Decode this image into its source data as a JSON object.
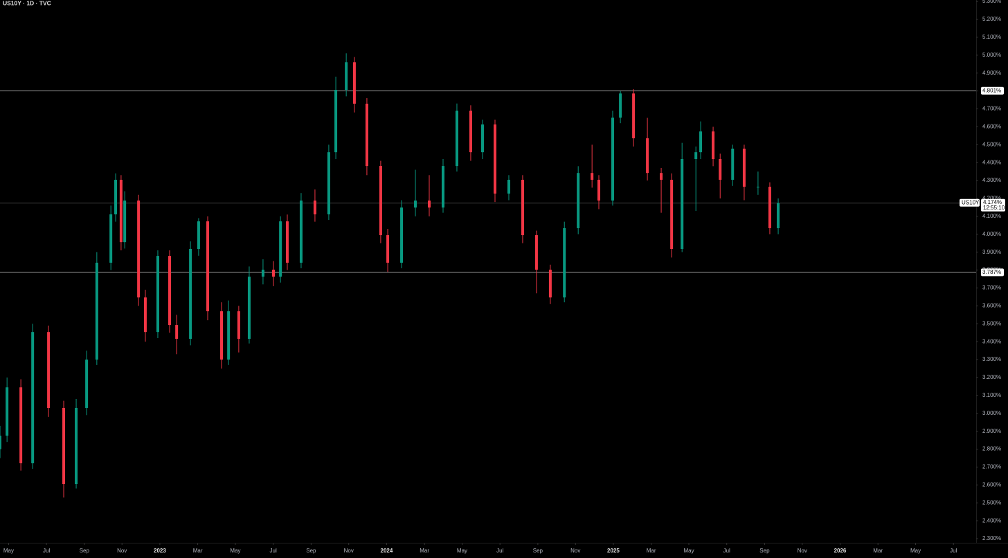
{
  "chart_data": {
    "type": "candlestick",
    "title": "US10Y · 1D · TVC",
    "up_color": "#089981",
    "down_color": "#f23645",
    "x": [
      2022.295,
      2022.326,
      2022.387,
      2022.439,
      2022.509,
      2022.576,
      2022.631,
      2022.677,
      2022.722,
      2022.784,
      2022.805,
      2022.829,
      2022.845,
      2022.906,
      2022.936,
      2022.991,
      2023.043,
      2023.074,
      2023.135,
      2023.171,
      2023.211,
      2023.272,
      2023.303,
      2023.348,
      2023.394,
      2023.455,
      2023.501,
      2023.532,
      2023.562,
      2023.623,
      2023.684,
      2023.745,
      2023.776,
      2023.822,
      2023.858,
      2023.913,
      2023.974,
      2024.005,
      2024.066,
      2024.127,
      2024.188,
      2024.249,
      2024.31,
      2024.371,
      2024.423,
      2024.478,
      2024.539,
      2024.6,
      2024.661,
      2024.722,
      2024.784,
      2024.845,
      2024.906,
      2024.936,
      2024.997,
      2025.031,
      2025.089,
      2025.15,
      2025.211,
      2025.257,
      2025.303,
      2025.364,
      2025.385,
      2025.44,
      2025.471,
      2025.526,
      2025.577,
      2025.638,
      2025.69,
      2025.727
    ],
    "open": [
      2.8,
      2.875,
      3.145,
      2.721,
      3.454,
      3.03,
      2.605,
      3.03,
      3.3,
      3.841,
      4.111,
      4.304,
      3.956,
      4.188,
      3.647,
      3.454,
      3.879,
      3.493,
      3.416,
      3.918,
      4.072,
      3.57,
      3.3,
      3.57,
      3.416,
      3.763,
      3.802,
      3.763,
      4.072,
      3.841,
      4.188,
      4.111,
      4.458,
      4.806,
      4.96,
      4.729,
      4.381,
      3.995,
      3.841,
      4.149,
      4.188,
      4.149,
      4.381,
      4.69,
      4.458,
      4.613,
      4.227,
      4.304,
      3.995,
      3.802,
      3.647,
      4.034,
      4.342,
      4.304,
      4.188,
      4.651,
      4.786,
      4.536,
      4.342,
      4.304,
      3.918,
      4.42,
      4.458,
      4.574,
      4.42,
      4.304,
      4.478,
      4.265,
      4.265,
      4.034
    ],
    "high": [
      2.93,
      3.2,
      3.19,
      3.5,
      3.49,
      3.07,
      3.08,
      3.35,
      3.9,
      4.16,
      4.34,
      4.33,
      4.24,
      4.22,
      3.69,
      3.91,
      3.91,
      3.55,
      3.96,
      4.09,
      4.1,
      3.62,
      3.63,
      3.6,
      3.82,
      3.86,
      3.85,
      4.1,
      4.11,
      4.23,
      4.25,
      4.5,
      4.88,
      5.01,
      4.99,
      4.76,
      4.41,
      4.03,
      4.19,
      4.36,
      4.33,
      4.42,
      4.73,
      4.72,
      4.64,
      4.64,
      4.33,
      4.33,
      4.02,
      3.83,
      4.07,
      4.38,
      4.5,
      4.33,
      4.69,
      4.8,
      4.81,
      4.65,
      4.37,
      4.34,
      4.51,
      4.49,
      4.63,
      4.6,
      4.45,
      4.5,
      4.5,
      4.35,
      4.29,
      4.2
    ],
    "low": [
      2.75,
      2.84,
      2.68,
      2.69,
      2.98,
      2.53,
      2.58,
      2.99,
      3.27,
      3.8,
      4.07,
      3.91,
      3.92,
      3.6,
      3.4,
      3.42,
      3.45,
      3.33,
      3.38,
      3.88,
      3.52,
      3.25,
      3.27,
      3.34,
      3.39,
      3.72,
      3.71,
      3.73,
      3.8,
      3.81,
      4.07,
      4.08,
      4.42,
      4.77,
      4.68,
      4.33,
      3.95,
      3.79,
      3.81,
      4.1,
      4.1,
      4.12,
      4.35,
      4.41,
      4.42,
      4.18,
      4.19,
      3.95,
      3.67,
      3.61,
      3.62,
      4.0,
      4.26,
      4.14,
      4.16,
      4.62,
      4.49,
      4.3,
      4.12,
      3.87,
      3.9,
      4.13,
      4.42,
      4.38,
      4.2,
      4.27,
      4.19,
      4.22,
      4.0,
      4.0
    ],
    "close": [
      2.875,
      3.145,
      2.721,
      3.454,
      3.03,
      2.605,
      3.03,
      3.3,
      3.841,
      4.111,
      4.304,
      3.956,
      4.188,
      3.647,
      3.454,
      3.879,
      3.493,
      3.416,
      3.918,
      4.072,
      3.57,
      3.3,
      3.57,
      3.416,
      3.763,
      3.802,
      3.763,
      4.072,
      3.841,
      4.188,
      4.111,
      4.458,
      4.806,
      4.96,
      4.729,
      4.381,
      3.995,
      3.841,
      4.149,
      4.188,
      4.149,
      4.381,
      4.69,
      4.458,
      4.613,
      4.227,
      4.304,
      3.995,
      3.802,
      3.647,
      4.034,
      4.342,
      4.304,
      4.188,
      4.651,
      4.786,
      4.536,
      4.342,
      4.304,
      3.918,
      4.42,
      4.458,
      4.574,
      4.42,
      4.304,
      4.478,
      4.265,
      4.265,
      4.034,
      4.174
    ],
    "xlim": [
      2022.295,
      2026.6
    ],
    "ylim": [
      2.277,
      5.308
    ],
    "xticks": [
      {
        "value": 2022.333,
        "label": "May"
      },
      {
        "value": 2022.5,
        "label": "Jul"
      },
      {
        "value": 2022.667,
        "label": "Sep"
      },
      {
        "value": 2022.833,
        "label": "Nov"
      },
      {
        "value": 2023,
        "label": "2023"
      },
      {
        "value": 2023.167,
        "label": "Mar"
      },
      {
        "value": 2023.333,
        "label": "May"
      },
      {
        "value": 2023.5,
        "label": "Jul"
      },
      {
        "value": 2023.667,
        "label": "Sep"
      },
      {
        "value": 2023.833,
        "label": "Nov"
      },
      {
        "value": 2024,
        "label": "2024"
      },
      {
        "value": 2024.167,
        "label": "Mar"
      },
      {
        "value": 2024.333,
        "label": "May"
      },
      {
        "value": 2024.5,
        "label": "Jul"
      },
      {
        "value": 2024.667,
        "label": "Sep"
      },
      {
        "value": 2024.833,
        "label": "Nov"
      },
      {
        "value": 2025,
        "label": "2025"
      },
      {
        "value": 2025.167,
        "label": "Mar"
      },
      {
        "value": 2025.333,
        "label": "May"
      },
      {
        "value": 2025.5,
        "label": "Jul"
      },
      {
        "value": 2025.667,
        "label": "Sep"
      },
      {
        "value": 2025.833,
        "label": "Nov"
      },
      {
        "value": 2026,
        "label": "2026"
      },
      {
        "value": 2026.167,
        "label": "Mar"
      },
      {
        "value": 2026.333,
        "label": "May"
      },
      {
        "value": 2026.5,
        "label": "Jul"
      }
    ],
    "yticks": [
      {
        "value": 2.3,
        "label": "2.300%"
      },
      {
        "value": 2.4,
        "label": "2.400%"
      },
      {
        "value": 2.5,
        "label": "2.500%"
      },
      {
        "value": 2.6,
        "label": "2.600%"
      },
      {
        "value": 2.7,
        "label": "2.700%"
      },
      {
        "value": 2.8,
        "label": "2.800%"
      },
      {
        "value": 2.9,
        "label": "2.900%"
      },
      {
        "value": 3.0,
        "label": "3.000%"
      },
      {
        "value": 3.1,
        "label": "3.100%"
      },
      {
        "value": 3.2,
        "label": "3.200%"
      },
      {
        "value": 3.3,
        "label": "3.300%"
      },
      {
        "value": 3.4,
        "label": "3.400%"
      },
      {
        "value": 3.5,
        "label": "3.500%"
      },
      {
        "value": 3.6,
        "label": "3.600%"
      },
      {
        "value": 3.7,
        "label": "3.700%"
      },
      {
        "value": 3.8,
        "label": "3.800%"
      },
      {
        "value": 3.9,
        "label": "3.900%"
      },
      {
        "value": 4.0,
        "label": "4.000%"
      },
      {
        "value": 4.1,
        "label": "4.100%"
      },
      {
        "value": 4.2,
        "label": "4.200%"
      },
      {
        "value": 4.3,
        "label": "4.300%"
      },
      {
        "value": 4.4,
        "label": "4.400%"
      },
      {
        "value": 4.5,
        "label": "4.500%"
      },
      {
        "value": 4.6,
        "label": "4.600%"
      },
      {
        "value": 4.7,
        "label": "4.700%"
      },
      {
        "value": 4.8,
        "label": "4.800%"
      },
      {
        "value": 4.9,
        "label": "4.900%"
      },
      {
        "value": 5.0,
        "label": "5.000%"
      },
      {
        "value": 5.1,
        "label": "5.100%"
      },
      {
        "value": 5.2,
        "label": "5.200%"
      },
      {
        "value": 5.3,
        "label": "5.300%"
      }
    ],
    "horizontal_lines": [
      {
        "value": 4.801,
        "label": "4.801%"
      },
      {
        "value": 3.787,
        "label": "3.787%"
      }
    ],
    "last_price": {
      "symbol": "US10Y",
      "value": 4.174,
      "label": "4.174%",
      "countdown": "12:55:10"
    }
  }
}
